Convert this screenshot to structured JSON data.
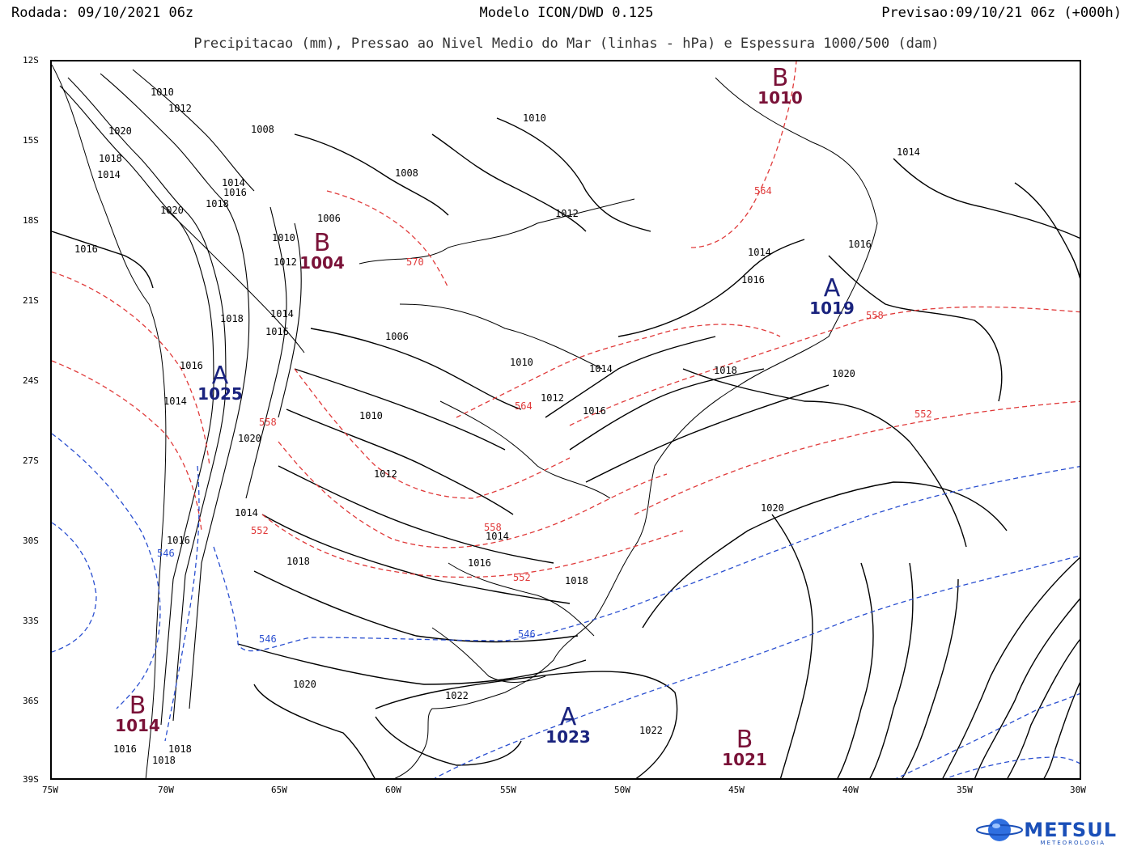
{
  "header": {
    "run": "Rodada: 09/10/2021 06z",
    "model": "Modelo ICON/DWD 0.125",
    "forecast": "Previsao:09/10/21 06z (+000h)",
    "subtitle": "Precipitacao (mm), Pressao ao Nivel Medio do Mar (linhas - hPa) e Espessura 1000/500 (dam)"
  },
  "axes": {
    "lat_ticks": [
      "12S",
      "15S",
      "18S",
      "21S",
      "24S",
      "27S",
      "30S",
      "33S",
      "36S",
      "39S"
    ],
    "lon_ticks": [
      "75W",
      "70W",
      "65W",
      "60W",
      "55W",
      "50W",
      "45W",
      "40W",
      "35W",
      "30W"
    ]
  },
  "colors": {
    "isobar": "#000000",
    "thickness_warm": "#e03a3a",
    "thickness_cold": "#2a4fd0",
    "high_center": "#1a237e",
    "low_center": "#7a1238",
    "borders": "#000000"
  },
  "pressure_centers": [
    {
      "type": "B",
      "value": "1010"
    },
    {
      "type": "B",
      "value": "1004"
    },
    {
      "type": "A",
      "value": "1019"
    },
    {
      "type": "A",
      "value": "1025"
    },
    {
      "type": "B",
      "value": "1014"
    },
    {
      "type": "A",
      "value": "1023"
    },
    {
      "type": "B",
      "value": "1021"
    }
  ],
  "isobar_labels": [
    "1010",
    "1012",
    "1020",
    "1018",
    "1014",
    "1008",
    "1014",
    "1016",
    "1018",
    "1020",
    "1016",
    "1010",
    "1012",
    "1006",
    "1008",
    "1014",
    "1016",
    "1018",
    "1016",
    "1014",
    "1006",
    "1010",
    "1012",
    "1014",
    "1016",
    "1018",
    "1020",
    "1014",
    "1018",
    "1020",
    "1016",
    "1012",
    "1010",
    "1014",
    "1016",
    "1012",
    "1010",
    "1016",
    "1018",
    "1014",
    "1020",
    "1016",
    "1022",
    "1020",
    "1022",
    "1018",
    "1016",
    "1018",
    "1014"
  ],
  "thickness_labels": [
    "564",
    "570",
    "558",
    "564",
    "558",
    "552",
    "558",
    "552",
    "552",
    "546",
    "546",
    "546"
  ],
  "logo": {
    "name": "METSUL",
    "sub": "METEOROLOGIA"
  }
}
